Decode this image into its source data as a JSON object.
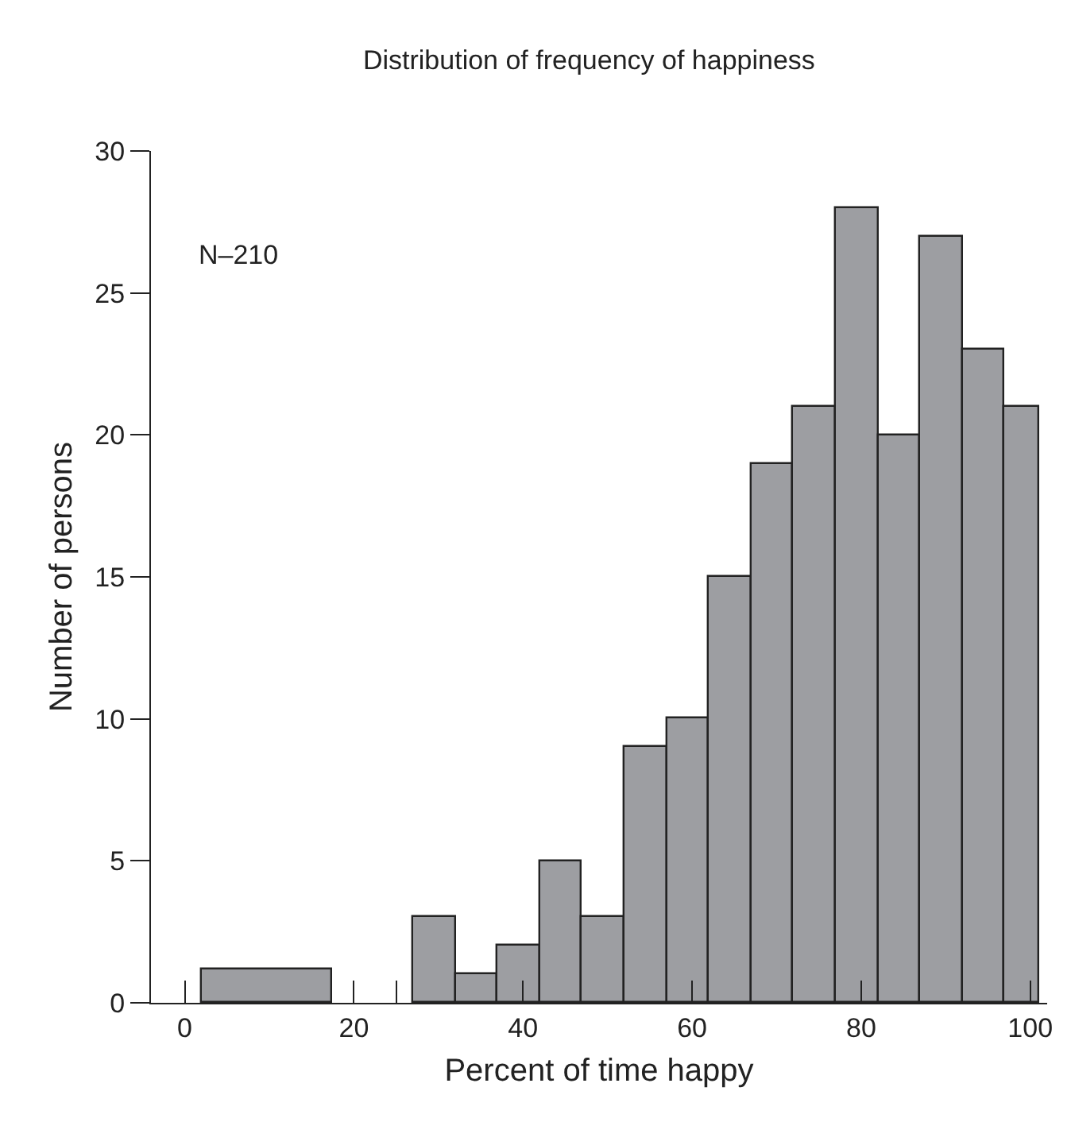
{
  "chart_data": {
    "type": "histogram",
    "title": "Distribution of frequency of happiness",
    "xlabel": "Percent of time happy",
    "ylabel": "Number of persons",
    "annotations": [
      "N–210"
    ],
    "bins": [
      2,
      17.5,
      27,
      32,
      37,
      42,
      47,
      52,
      57,
      62,
      67,
      72,
      77,
      82,
      87,
      92,
      97,
      101
    ],
    "values": [
      1.2,
      0,
      3,
      1,
      2,
      5,
      3,
      9,
      10,
      15,
      19,
      21,
      28,
      20,
      27,
      23,
      21
    ],
    "color": "#9d9ea2",
    "xlim": [
      -4,
      102
    ],
    "xticks": [
      0,
      20,
      {
        "value": 25,
        "label": null
      },
      40,
      60,
      80,
      100
    ],
    "ylim": [
      0,
      30
    ],
    "yticks": [
      0,
      5,
      10,
      15,
      20,
      25,
      30
    ]
  }
}
